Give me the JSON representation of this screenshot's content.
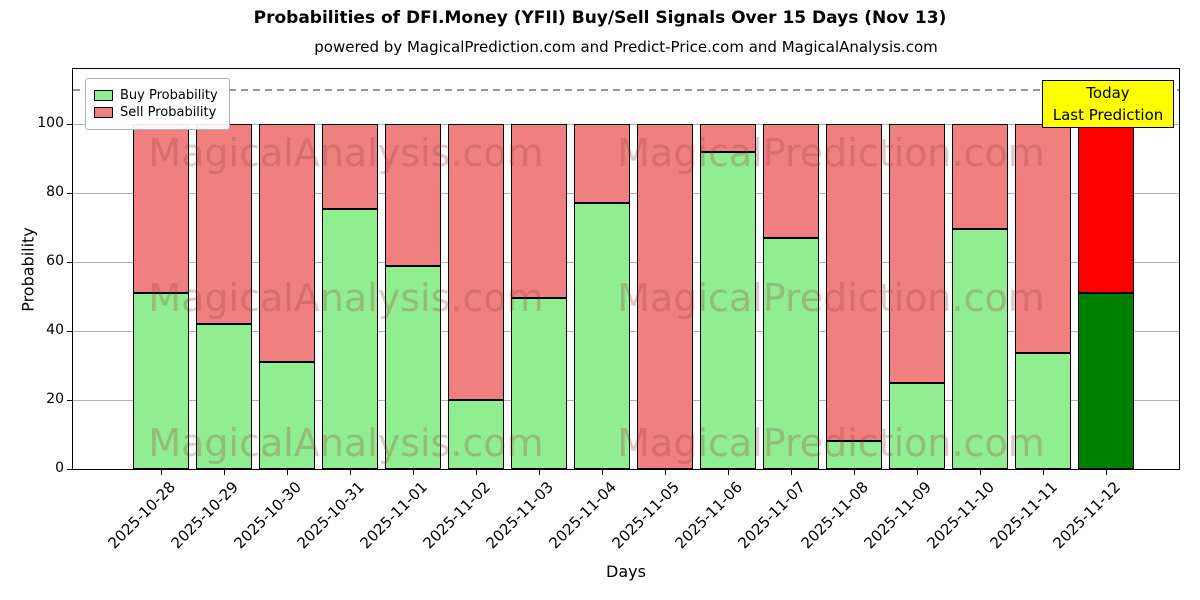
{
  "chart_data": {
    "type": "bar",
    "stacked": true,
    "title": "Probabilities of DFI.Money (YFII) Buy/Sell Signals Over 15 Days (Nov 13)",
    "subtitle": "powered by MagicalPrediction.com and Predict-Price.com and MagicalAnalysis.com",
    "xlabel": "Days",
    "ylabel": "Probability",
    "ylim": [
      0,
      116
    ],
    "yticks": [
      0,
      20,
      40,
      60,
      80,
      100
    ],
    "dashed_line_y": 110,
    "grid": "horizontal",
    "legend_position": "upper-left",
    "categories": [
      "2025-10-28",
      "2025-10-29",
      "2025-10-30",
      "2025-10-31",
      "2025-11-01",
      "2025-11-02",
      "2025-11-03",
      "2025-11-04",
      "2025-11-05",
      "2025-11-06",
      "2025-11-07",
      "2025-11-08",
      "2025-11-09",
      "2025-11-10",
      "2025-11-11",
      "2025-11-12"
    ],
    "series": [
      {
        "name": "Buy Probability",
        "color": "#90ee90",
        "values": [
          51,
          42,
          31,
          75.5,
          59,
          20,
          49.5,
          77,
          0,
          92,
          67,
          8,
          25,
          69.5,
          33.5,
          51
        ]
      },
      {
        "name": "Sell Probability",
        "color": "#f08080",
        "values": [
          49,
          58,
          69,
          24.5,
          41,
          80,
          50.5,
          23,
          100,
          8,
          33,
          92,
          75,
          30.5,
          66.5,
          49
        ]
      }
    ],
    "last_bar": {
      "buy_color": "#008000",
      "sell_color": "#ff0000"
    },
    "watermarks": [
      "MagicalAnalysis.com",
      "MagicalPrediction.com"
    ]
  },
  "today_box": {
    "line1": "Today",
    "line2": "Last Prediction",
    "bg": "#ffff00",
    "border": "#000000"
  }
}
